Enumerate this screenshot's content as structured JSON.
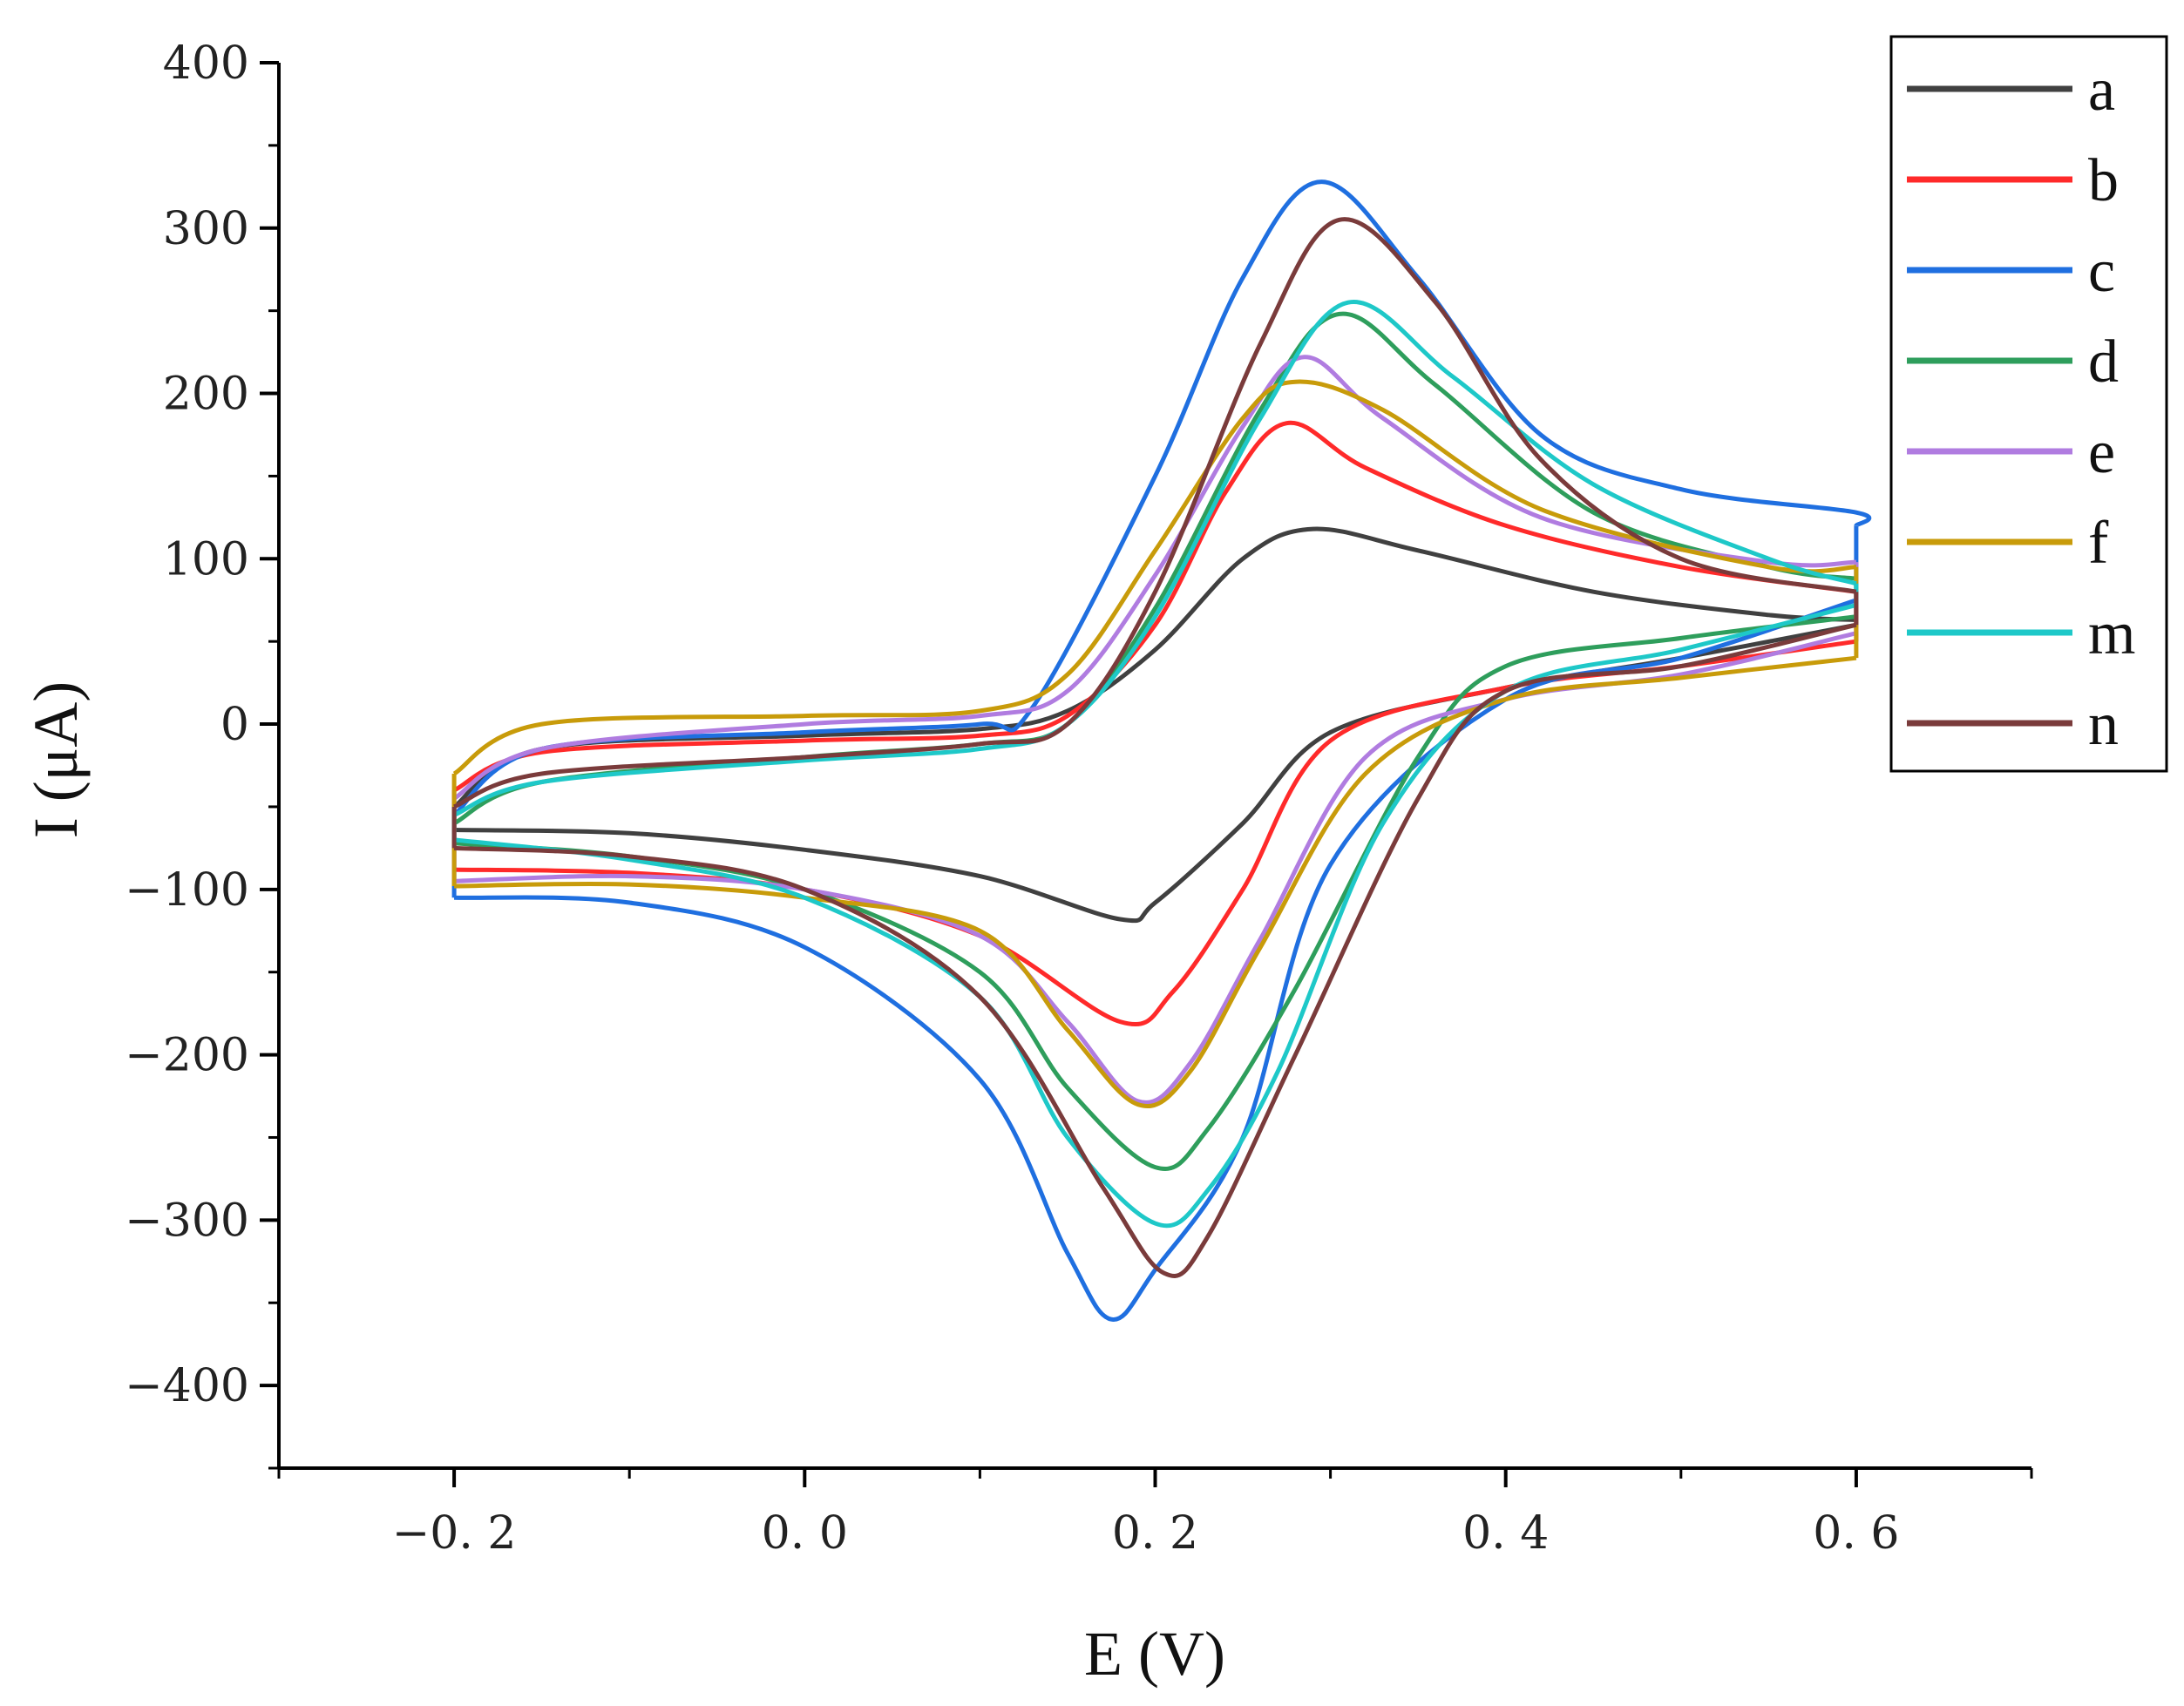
{
  "chart_data": {
    "type": "line",
    "title": "",
    "xlabel": "E (V)",
    "ylabel": "I (μA)",
    "xlim": [
      -0.3,
      0.7
    ],
    "ylim": [
      -450,
      400
    ],
    "x_ticks": [
      -0.2,
      0.0,
      0.2,
      0.4,
      0.6
    ],
    "x_tick_labels": [
      "−0. 2",
      "0. 0",
      "0. 2",
      "0. 4",
      "0. 6"
    ],
    "y_ticks": [
      400,
      300,
      200,
      100,
      0,
      -100,
      -200,
      -300,
      -400
    ],
    "y_tick_labels": [
      "400",
      "300",
      "200",
      "100",
      "0",
      "−100",
      "−200",
      "−300",
      "−400"
    ],
    "grid": false,
    "legend_position": "top-right",
    "series": [
      {
        "name": "a",
        "color": "#404040",
        "anodic": [
          [
            -0.2,
            -50
          ],
          [
            -0.15,
            -15
          ],
          [
            0.0,
            -7
          ],
          [
            0.1,
            -3
          ],
          [
            0.15,
            8
          ],
          [
            0.2,
            45
          ],
          [
            0.25,
            100
          ],
          [
            0.29,
            118
          ],
          [
            0.35,
            105
          ],
          [
            0.45,
            80
          ],
          [
            0.55,
            66
          ],
          [
            0.6,
            63
          ]
        ],
        "cathodic": [
          [
            0.6,
            60
          ],
          [
            0.5,
            40
          ],
          [
            0.4,
            22
          ],
          [
            0.3,
            -5
          ],
          [
            0.25,
            -60
          ],
          [
            0.2,
            -108
          ],
          [
            0.18,
            -118
          ],
          [
            0.1,
            -92
          ],
          [
            0.0,
            -76
          ],
          [
            -0.1,
            -66
          ],
          [
            -0.2,
            -64
          ]
        ]
      },
      {
        "name": "b",
        "color": "#ff2a2a",
        "anodic": [
          [
            -0.2,
            -40
          ],
          [
            -0.15,
            -17
          ],
          [
            0.0,
            -10
          ],
          [
            0.1,
            -7
          ],
          [
            0.15,
            5
          ],
          [
            0.2,
            60
          ],
          [
            0.24,
            140
          ],
          [
            0.275,
            182
          ],
          [
            0.32,
            155
          ],
          [
            0.4,
            120
          ],
          [
            0.5,
            95
          ],
          [
            0.6,
            80
          ]
        ],
        "cathodic": [
          [
            0.6,
            50
          ],
          [
            0.5,
            35
          ],
          [
            0.4,
            22
          ],
          [
            0.3,
            -10
          ],
          [
            0.25,
            -100
          ],
          [
            0.21,
            -162
          ],
          [
            0.18,
            -180
          ],
          [
            0.1,
            -128
          ],
          [
            0.0,
            -100
          ],
          [
            -0.1,
            -90
          ],
          [
            -0.2,
            -88
          ]
        ]
      },
      {
        "name": "c",
        "color": "#1f6fe0",
        "anodic": [
          [
            -0.2,
            -55
          ],
          [
            -0.15,
            -15
          ],
          [
            0.0,
            -5
          ],
          [
            0.1,
            0
          ],
          [
            0.13,
            10
          ],
          [
            0.2,
            150
          ],
          [
            0.25,
            270
          ],
          [
            0.295,
            328
          ],
          [
            0.35,
            270
          ],
          [
            0.42,
            175
          ],
          [
            0.5,
            142
          ],
          [
            0.6,
            128
          ],
          [
            0.6,
            120
          ]
        ],
        "cathodic": [
          [
            0.6,
            75
          ],
          [
            0.5,
            40
          ],
          [
            0.4,
            15
          ],
          [
            0.3,
            -85
          ],
          [
            0.25,
            -250
          ],
          [
            0.2,
            -330
          ],
          [
            0.175,
            -360
          ],
          [
            0.15,
            -320
          ],
          [
            0.1,
            -215
          ],
          [
            0.0,
            -135
          ],
          [
            -0.1,
            -108
          ],
          [
            -0.2,
            -105
          ]
        ]
      },
      {
        "name": "d",
        "color": "#2e9e5c",
        "anodic": [
          [
            -0.2,
            -60
          ],
          [
            -0.15,
            -35
          ],
          [
            0.0,
            -20
          ],
          [
            0.1,
            -12
          ],
          [
            0.15,
            0
          ],
          [
            0.2,
            70
          ],
          [
            0.26,
            190
          ],
          [
            0.305,
            248
          ],
          [
            0.36,
            205
          ],
          [
            0.45,
            128
          ],
          [
            0.55,
            95
          ],
          [
            0.6,
            88
          ]
        ],
        "cathodic": [
          [
            0.6,
            65
          ],
          [
            0.5,
            52
          ],
          [
            0.4,
            35
          ],
          [
            0.35,
            -20
          ],
          [
            0.28,
            -160
          ],
          [
            0.23,
            -245
          ],
          [
            0.2,
            -268
          ],
          [
            0.15,
            -220
          ],
          [
            0.1,
            -150
          ],
          [
            0.0,
            -100
          ],
          [
            -0.1,
            -80
          ],
          [
            -0.2,
            -72
          ]
        ]
      },
      {
        "name": "e",
        "color": "#b07ce0",
        "anodic": [
          [
            -0.2,
            -45
          ],
          [
            -0.15,
            -15
          ],
          [
            0.0,
            0
          ],
          [
            0.1,
            5
          ],
          [
            0.15,
            20
          ],
          [
            0.2,
            90
          ],
          [
            0.25,
            180
          ],
          [
            0.285,
            222
          ],
          [
            0.33,
            185
          ],
          [
            0.42,
            125
          ],
          [
            0.55,
            98
          ],
          [
            0.6,
            98
          ]
        ],
        "cathodic": [
          [
            0.6,
            55
          ],
          [
            0.5,
            30
          ],
          [
            0.4,
            15
          ],
          [
            0.32,
            -20
          ],
          [
            0.26,
            -130
          ],
          [
            0.22,
            -205
          ],
          [
            0.19,
            -228
          ],
          [
            0.15,
            -180
          ],
          [
            0.1,
            -128
          ],
          [
            0.0,
            -100
          ],
          [
            -0.1,
            -92
          ],
          [
            -0.2,
            -95
          ]
        ]
      },
      {
        "name": "f",
        "color": "#c89b0a",
        "anodic": [
          [
            -0.2,
            -30
          ],
          [
            -0.15,
            0
          ],
          [
            0.0,
            5
          ],
          [
            0.1,
            8
          ],
          [
            0.15,
            30
          ],
          [
            0.2,
            105
          ],
          [
            0.25,
            185
          ],
          [
            0.28,
            207
          ],
          [
            0.33,
            190
          ],
          [
            0.42,
            130
          ],
          [
            0.55,
            95
          ],
          [
            0.6,
            95
          ]
        ],
        "cathodic": [
          [
            0.6,
            40
          ],
          [
            0.5,
            28
          ],
          [
            0.4,
            15
          ],
          [
            0.32,
            -30
          ],
          [
            0.26,
            -135
          ],
          [
            0.22,
            -210
          ],
          [
            0.19,
            -230
          ],
          [
            0.15,
            -185
          ],
          [
            0.1,
            -125
          ],
          [
            0.0,
            -105
          ],
          [
            -0.1,
            -97
          ],
          [
            -0.2,
            -98
          ]
        ]
      },
      {
        "name": "m",
        "color": "#1ec8c8",
        "anodic": [
          [
            -0.2,
            -55
          ],
          [
            -0.15,
            -35
          ],
          [
            0.0,
            -22
          ],
          [
            0.1,
            -15
          ],
          [
            0.15,
            0
          ],
          [
            0.2,
            65
          ],
          [
            0.26,
            185
          ],
          [
            0.31,
            255
          ],
          [
            0.37,
            210
          ],
          [
            0.45,
            145
          ],
          [
            0.55,
            100
          ],
          [
            0.6,
            85
          ]
        ],
        "cathodic": [
          [
            0.6,
            72
          ],
          [
            0.5,
            45
          ],
          [
            0.4,
            20
          ],
          [
            0.33,
            -60
          ],
          [
            0.27,
            -210
          ],
          [
            0.23,
            -282
          ],
          [
            0.2,
            -302
          ],
          [
            0.15,
            -250
          ],
          [
            0.1,
            -165
          ],
          [
            0.0,
            -105
          ],
          [
            -0.1,
            -82
          ],
          [
            -0.2,
            -70
          ]
        ]
      },
      {
        "name": "n",
        "color": "#7a3b3b",
        "anodic": [
          [
            -0.2,
            -50
          ],
          [
            -0.15,
            -30
          ],
          [
            0.0,
            -20
          ],
          [
            0.1,
            -12
          ],
          [
            0.15,
            0
          ],
          [
            0.2,
            80
          ],
          [
            0.26,
            230
          ],
          [
            0.305,
            305
          ],
          [
            0.36,
            255
          ],
          [
            0.42,
            160
          ],
          [
            0.5,
            100
          ],
          [
            0.6,
            80
          ]
        ],
        "cathodic": [
          [
            0.6,
            60
          ],
          [
            0.5,
            35
          ],
          [
            0.4,
            20
          ],
          [
            0.35,
            -45
          ],
          [
            0.28,
            -200
          ],
          [
            0.23,
            -310
          ],
          [
            0.205,
            -332
          ],
          [
            0.17,
            -280
          ],
          [
            0.1,
            -165
          ],
          [
            0.0,
            -100
          ],
          [
            -0.1,
            -80
          ],
          [
            -0.2,
            -75
          ]
        ]
      }
    ]
  }
}
